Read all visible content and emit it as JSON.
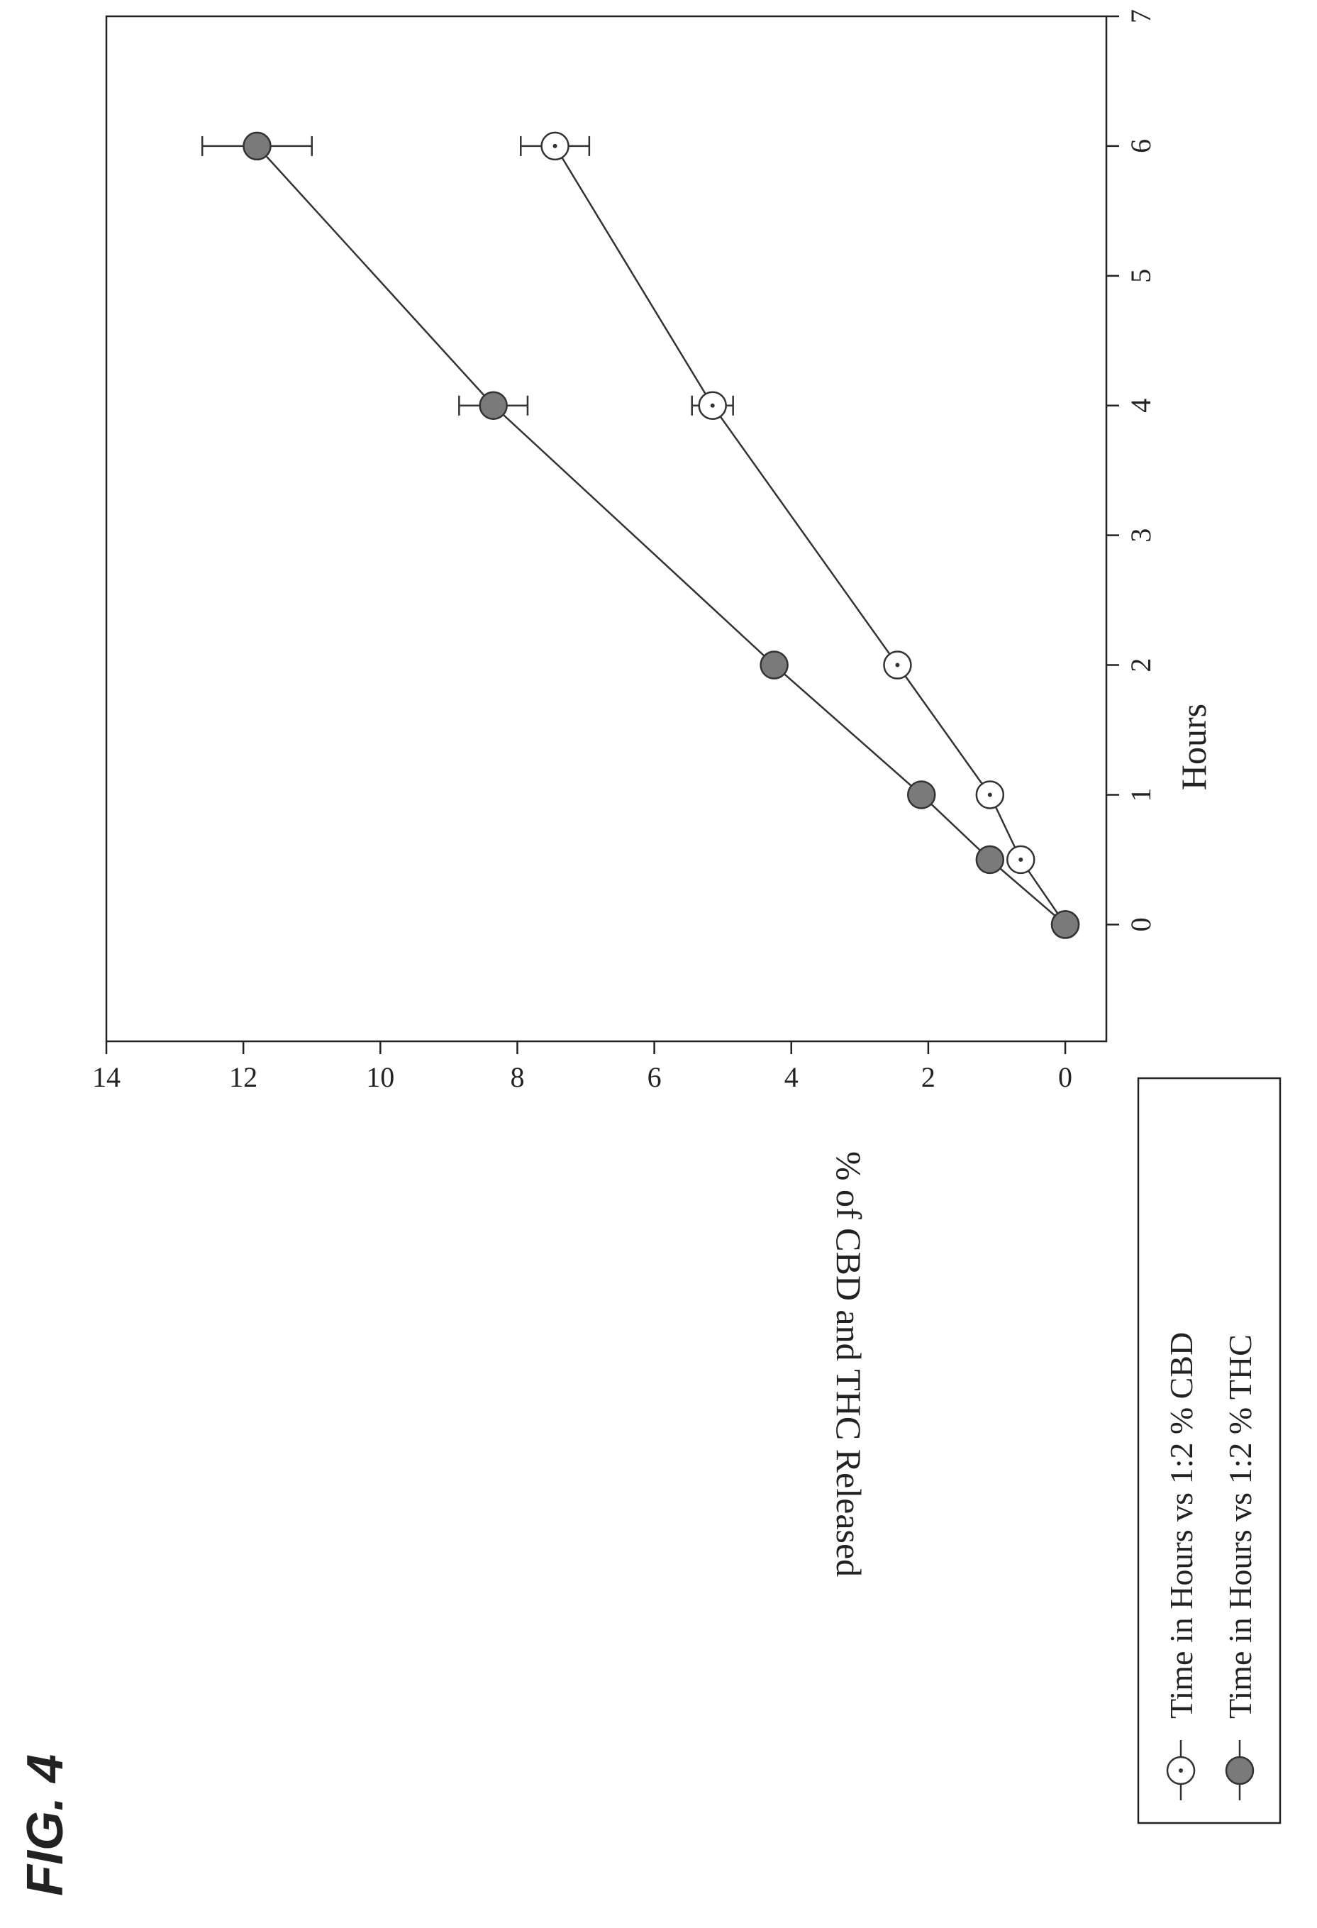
{
  "figure": {
    "label": "FIG. 4"
  },
  "chart_data": {
    "type": "line",
    "xlabel": "Hours",
    "ylabel": "% of CBD and THC Released",
    "xlim": [
      -0.9,
      7
    ],
    "ylim": [
      -0.6,
      14
    ],
    "xticks": [
      0,
      1,
      2,
      3,
      4,
      5,
      6,
      7
    ],
    "yticks": [
      0,
      2,
      4,
      6,
      8,
      10,
      12,
      14
    ],
    "grid": false,
    "legend_position": "below plot, left",
    "series": [
      {
        "name": "Time in Hours vs 1:2 % CBD",
        "marker": "open-circle-dot",
        "color": "#333333",
        "x": [
          0,
          0.5,
          1,
          2,
          4,
          6
        ],
        "y": [
          0,
          0.65,
          1.1,
          2.45,
          5.15,
          7.45
        ],
        "error": [
          0,
          0.05,
          0.05,
          0.1,
          0.3,
          0.5
        ]
      },
      {
        "name": "Time in Hours vs 1:2 % THC",
        "marker": "filled-circle",
        "color": "#7a7a7a",
        "x": [
          0,
          0.5,
          1,
          2,
          4,
          6
        ],
        "y": [
          0,
          1.1,
          2.1,
          4.25,
          8.35,
          11.8
        ],
        "error": [
          0,
          0.15,
          0.05,
          0.1,
          0.5,
          0.8
        ]
      }
    ]
  }
}
